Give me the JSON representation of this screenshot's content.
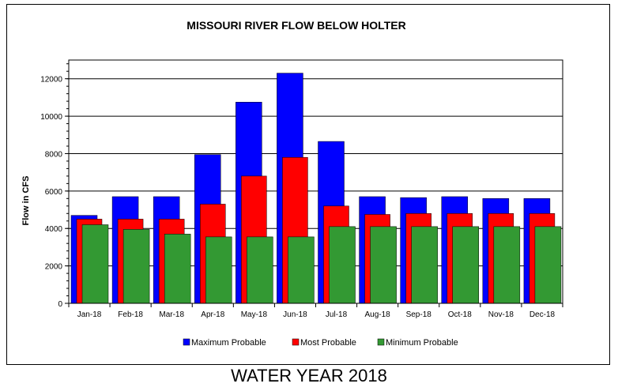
{
  "chart_data": {
    "type": "bar",
    "title": "MISSOURI RIVER FLOW BELOW HOLTER",
    "xlabel": "",
    "ylabel": "Flow in CFS",
    "ylim": [
      0,
      13000
    ],
    "yticks": [
      0,
      2000,
      4000,
      6000,
      8000,
      10000,
      12000
    ],
    "grid": true,
    "legend_position": "bottom",
    "categories": [
      "Jan-18",
      "Feb-18",
      "Mar-18",
      "Apr-18",
      "May-18",
      "Jun-18",
      "Jul-18",
      "Aug-18",
      "Sep-18",
      "Oct-18",
      "Nov-18",
      "Dec-18"
    ],
    "series": [
      {
        "name": "Maximum Probable",
        "color": "#0000ff",
        "values": [
          4700,
          5700,
          5700,
          7950,
          10750,
          12300,
          8650,
          5700,
          5650,
          5700,
          5600,
          5600
        ]
      },
      {
        "name": "Most Probable",
        "color": "#ff0000",
        "values": [
          4500,
          4500,
          4500,
          5300,
          6800,
          7800,
          5200,
          4750,
          4800,
          4800,
          4800,
          4800
        ]
      },
      {
        "name": "Minimum Probable",
        "color": "#339933",
        "values": [
          4200,
          3950,
          3700,
          3550,
          3550,
          3550,
          4100,
          4100,
          4100,
          4100,
          4100,
          4100
        ]
      }
    ]
  },
  "footer": "WATER YEAR 2018"
}
